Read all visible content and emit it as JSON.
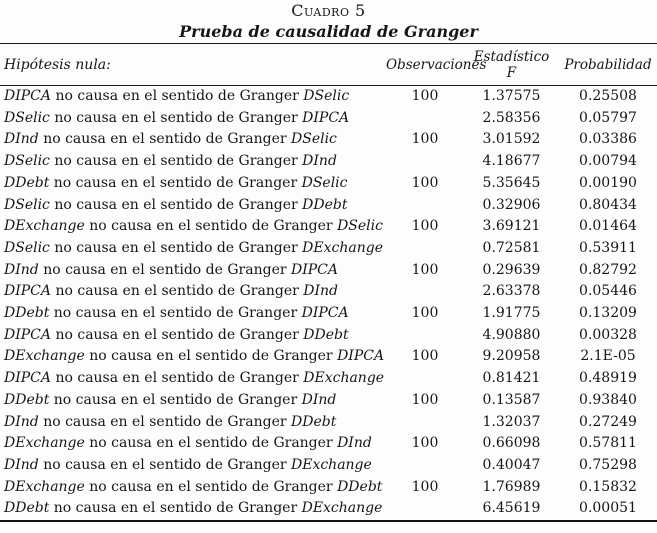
{
  "header": {
    "table_number": "Cuadro 5",
    "table_title": "Prueba de causalidad de Granger"
  },
  "table": {
    "columns": {
      "hypothesis": "Hipótesis nula:",
      "observations": "Observaciones",
      "f_statistic_line1": "Estadístico",
      "f_statistic_line2": "F",
      "probability": "Probabilidad"
    },
    "rows": [
      {
        "cause": "DIPCA",
        "middle": "no causa en el sentido de Granger",
        "effect": "DSelic",
        "obs": "100",
        "f": "1.37575",
        "p": "0.25508"
      },
      {
        "cause": "DSelic",
        "middle": "no causa en el sentido de Granger",
        "effect": "DIPCA",
        "obs": "",
        "f": "2.58356",
        "p": "0.05797"
      },
      {
        "cause": "DInd",
        "middle": "no causa en el sentido de Granger",
        "effect": "DSelic",
        "obs": "100",
        "f": "3.01592",
        "p": "0.03386"
      },
      {
        "cause": "DSelic",
        "middle": "no causa en el sentido de Granger",
        "effect": "DInd",
        "obs": "",
        "f": "4.18677",
        "p": "0.00794"
      },
      {
        "cause": "DDebt",
        "middle": "no causa en el sentido de Granger",
        "effect": "DSelic",
        "obs": "100",
        "f": "5.35645",
        "p": "0.00190"
      },
      {
        "cause": "DSelic",
        "middle": "no causa en el sentido de Granger",
        "effect": "DDebt",
        "obs": "",
        "f": "0.32906",
        "p": "0.80434"
      },
      {
        "cause": "DExchange",
        "middle": "no causa en el sentido de Granger",
        "effect": "DSelic",
        "obs": "100",
        "f": "3.69121",
        "p": "0.01464"
      },
      {
        "cause": "DSelic",
        "middle": "no causa en el sentido de Granger",
        "effect": "DExchange",
        "obs": "",
        "f": "0.72581",
        "p": "0.53911"
      },
      {
        "cause": "DInd",
        "middle": "no causa en el sentido de Granger",
        "effect": "DIPCA",
        "obs": "100",
        "f": "0.29639",
        "p": "0.82792"
      },
      {
        "cause": "DIPCA",
        "middle": "no causa en el sentido de Granger",
        "effect": "DInd",
        "obs": "",
        "f": "2.63378",
        "p": "0.05446"
      },
      {
        "cause": "DDebt",
        "middle": "no causa en el sentido de Granger",
        "effect": "DIPCA",
        "obs": "100",
        "f": "1.91775",
        "p": "0.13209"
      },
      {
        "cause": "DIPCA",
        "middle": "no causa en el sentido de Granger",
        "effect": "DDebt",
        "obs": "",
        "f": "4.90880",
        "p": "0.00328"
      },
      {
        "cause": "DExchange",
        "middle": "no causa en el sentido de Granger",
        "effect": "DIPCA",
        "obs": "100",
        "f": "9.20958",
        "p": "2.1E-05"
      },
      {
        "cause": "DIPCA",
        "middle": "no causa en el sentido de Granger",
        "effect": "DExchange",
        "obs": "",
        "f": "0.81421",
        "p": "0.48919"
      },
      {
        "cause": "DDebt",
        "middle": "no causa en el sentido de Granger",
        "effect": "DInd",
        "obs": "100",
        "f": "0.13587",
        "p": "0.93840"
      },
      {
        "cause": "DInd",
        "middle": "no causa en el sentido de Granger",
        "effect": "DDebt",
        "obs": "",
        "f": "1.32037",
        "p": "0.27249"
      },
      {
        "cause": "DExchange",
        "middle": "no causa en el sentido de Granger",
        "effect": "DInd",
        "obs": "100",
        "f": "0.66098",
        "p": "0.57811"
      },
      {
        "cause": "DInd",
        "middle": "no causa en el sentido de Granger",
        "effect": "DExchange",
        "obs": "",
        "f": "0.40047",
        "p": "0.75298"
      },
      {
        "cause": "DExchange",
        "middle": "no causa en el sentido de Granger",
        "effect": "DDebt",
        "obs": "100",
        "f": "1.76989",
        "p": "0.15832"
      },
      {
        "cause": "DDebt",
        "middle": "no causa en el sentido de Granger",
        "effect": "DExchange",
        "obs": "",
        "f": "6.45619",
        "p": "0.00051"
      }
    ]
  }
}
